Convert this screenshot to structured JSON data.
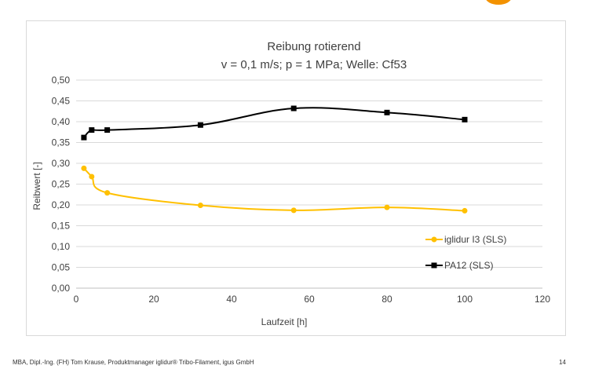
{
  "footer": {
    "text": "MBA, Dipl.-Ing. (FH) Tom Krause, Produktmanager iglidur® Tribo-Filament, igus GmbH",
    "page_number": "14"
  },
  "brand_color": "#f39200",
  "chart_data": {
    "type": "line",
    "title": "Reibung rotierend",
    "subtitle": "v = 0,1 m/s; p = 1 MPa; Welle: Cf53",
    "xlabel": "Laufzeit [h]",
    "ylabel": "Reibwert [-]",
    "xlim": [
      0,
      120
    ],
    "ylim": [
      0,
      0.5
    ],
    "x_ticks": [
      0,
      20,
      40,
      60,
      80,
      100,
      120
    ],
    "x_tick_labels": [
      "0",
      "20",
      "40",
      "60",
      "80",
      "100",
      "120"
    ],
    "y_ticks": [
      0,
      0.05,
      0.1,
      0.15,
      0.2,
      0.25,
      0.3,
      0.35,
      0.4,
      0.45,
      0.5
    ],
    "y_tick_labels": [
      "0,00",
      "0,05",
      "0,10",
      "0,15",
      "0,20",
      "0,25",
      "0,30",
      "0,35",
      "0,40",
      "0,45",
      "0,50"
    ],
    "grid": "horizontal",
    "legend_position": "right",
    "series": [
      {
        "name": "iglidur I3 (SLS)",
        "color": "#ffc000",
        "marker": "circle",
        "x": [
          2,
          4,
          8,
          32,
          56,
          80,
          100
        ],
        "y": [
          0.288,
          0.268,
          0.229,
          0.199,
          0.187,
          0.194,
          0.186
        ]
      },
      {
        "name": "PA12 (SLS)",
        "color": "#000000",
        "marker": "square",
        "x": [
          2,
          4,
          8,
          32,
          56,
          80,
          100
        ],
        "y": [
          0.362,
          0.38,
          0.38,
          0.392,
          0.432,
          0.422,
          0.405
        ]
      }
    ]
  }
}
